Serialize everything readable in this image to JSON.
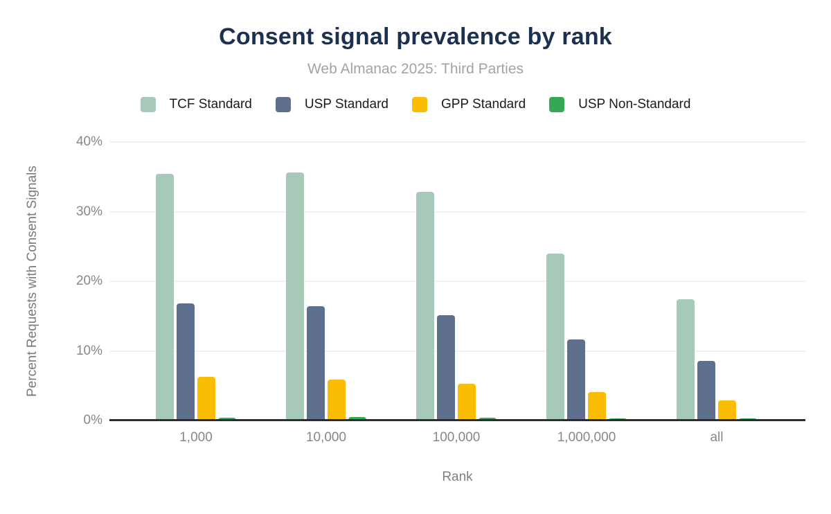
{
  "header": {
    "title": "Consent signal prevalence by rank",
    "subtitle": "Web Almanac 2025: Third Parties"
  },
  "colors": {
    "title": "#1c3050",
    "subtitle": "#a3a3a3",
    "axis_text": "#878787",
    "gridline": "#f2f2f2",
    "axis_line": "#2d2d2d",
    "tcf": "#a7c9b7",
    "usp": "#5f708f",
    "gpp": "#fbbc04",
    "usp_nonstandard": "#34a853"
  },
  "chart_data": {
    "type": "bar",
    "title": "Consent signal prevalence by rank",
    "subtitle": "Web Almanac 2025: Third Parties",
    "xlabel": "Rank",
    "ylabel": "Percent Requests with Consent Signals",
    "ylim": [
      0,
      40
    ],
    "yticks": [
      {
        "value": 0,
        "label": "0%"
      },
      {
        "value": 10,
        "label": "10%"
      },
      {
        "value": 20,
        "label": "20%"
      },
      {
        "value": 30,
        "label": "30%"
      },
      {
        "value": 40,
        "label": "40%"
      }
    ],
    "grid": "horizontal-only",
    "legend_position": "top",
    "categories": [
      "1,000",
      "10,000",
      "100,000",
      "1,000,000",
      "all"
    ],
    "series": [
      {
        "name": "TCF Standard",
        "color": "#a7c9b7",
        "values": [
          35.4,
          35.6,
          32.8,
          24.0,
          17.4
        ]
      },
      {
        "name": "USP Standard",
        "color": "#5f708f",
        "values": [
          16.8,
          16.4,
          15.1,
          11.6,
          8.6
        ]
      },
      {
        "name": "GPP Standard",
        "color": "#fbbc04",
        "values": [
          6.3,
          5.9,
          5.3,
          4.1,
          2.9
        ]
      },
      {
        "name": "USP Non-Standard",
        "color": "#34a853",
        "values": [
          0.4,
          0.5,
          0.4,
          0.3,
          0.2
        ]
      }
    ]
  }
}
